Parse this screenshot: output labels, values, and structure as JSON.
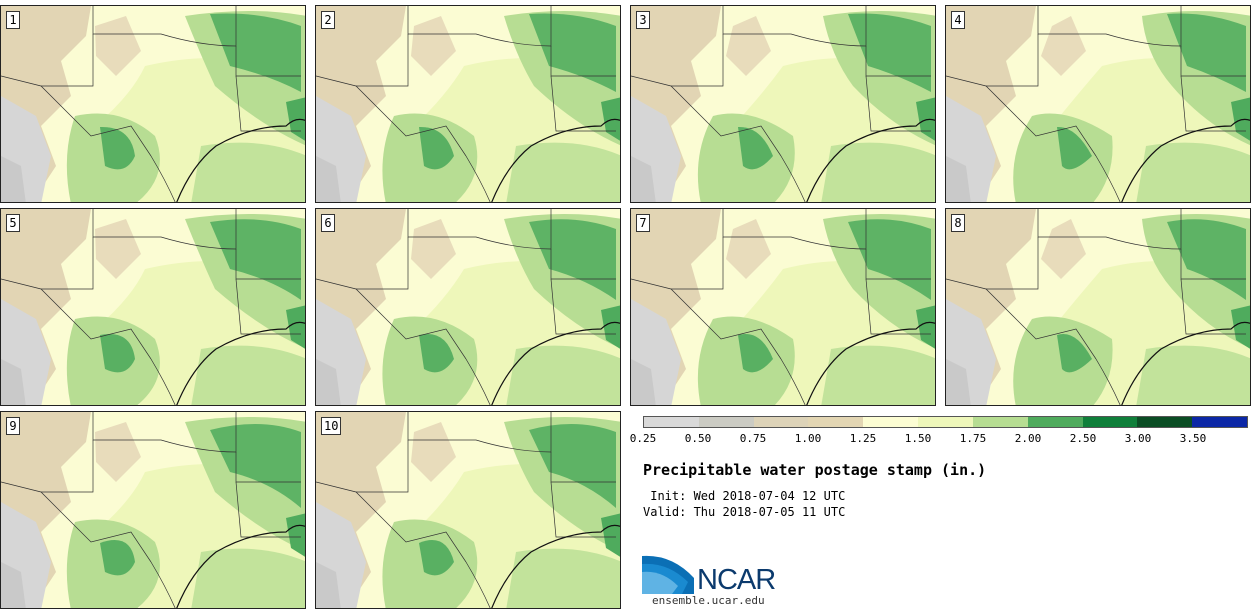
{
  "panels": [
    {
      "label": "1"
    },
    {
      "label": "2"
    },
    {
      "label": "3"
    },
    {
      "label": "4"
    },
    {
      "label": "5"
    },
    {
      "label": "6"
    },
    {
      "label": "7"
    },
    {
      "label": "8"
    },
    {
      "label": "9"
    },
    {
      "label": "10"
    }
  ],
  "legend": {
    "ticks": [
      "0.25",
      "0.50",
      "0.75",
      "1.00",
      "1.25",
      "1.50",
      "1.75",
      "2.00",
      "2.50",
      "3.00",
      "3.50"
    ],
    "colors": [
      "#d9d9d9",
      "#cbcbc3",
      "#ddd3b8",
      "#e3d6b3",
      "#fcfdd3",
      "#eef7ba",
      "#b6dd92",
      "#4fab5d",
      "#0f7f3a",
      "#0a4d24",
      "#0b27a6"
    ]
  },
  "title": "Precipitable water postage stamp (in.)",
  "init_text": " Init: Wed 2018-07-04 12 UTC",
  "valid_text": "Valid: Thu 2018-07-05 11 UTC",
  "logo_text": "NCAR",
  "site": "ensemble.ucar.edu"
}
